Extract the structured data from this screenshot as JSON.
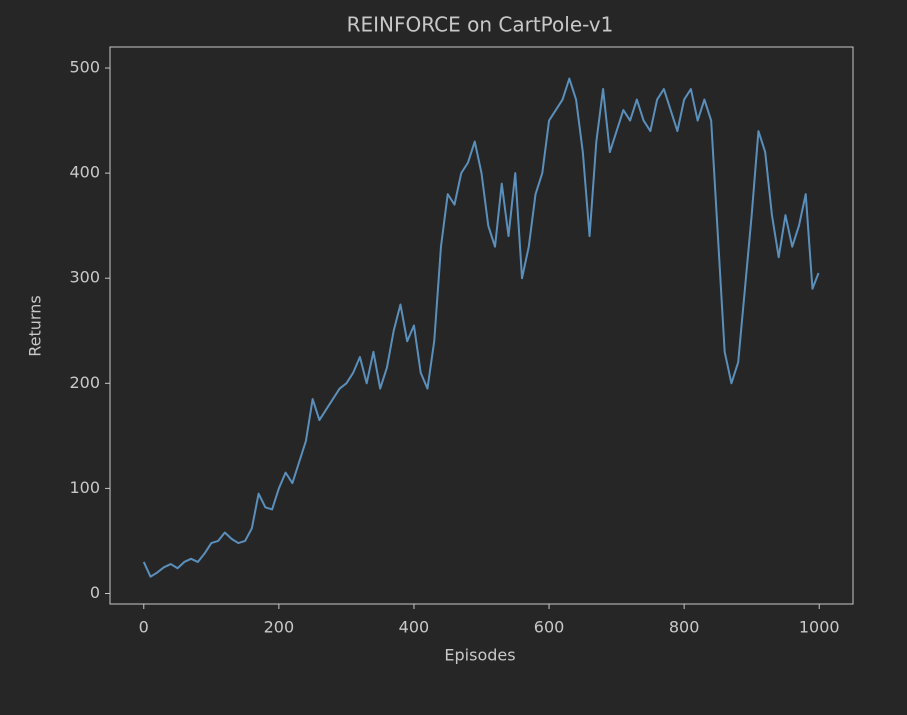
{
  "chart_data": {
    "type": "line",
    "title": "REINFORCE on CartPole-v1",
    "x_label": "Episodes",
    "y_label": "Returns",
    "x": [
      0,
      10,
      20,
      30,
      40,
      50,
      60,
      70,
      80,
      90,
      100,
      110,
      120,
      130,
      140,
      150,
      160,
      170,
      180,
      190,
      200,
      210,
      220,
      230,
      240,
      250,
      260,
      270,
      280,
      290,
      300,
      310,
      320,
      330,
      340,
      350,
      360,
      370,
      380,
      390,
      400,
      410,
      420,
      430,
      440,
      450,
      460,
      470,
      480,
      490,
      500,
      510,
      520,
      530,
      540,
      550,
      560,
      570,
      580,
      590,
      600,
      610,
      620,
      630,
      640,
      650,
      660,
      670,
      680,
      690,
      700,
      710,
      720,
      730,
      740,
      750,
      760,
      770,
      780,
      790,
      800,
      810,
      820,
      830,
      840,
      850,
      860,
      870,
      880,
      890,
      900,
      910,
      920,
      930,
      940,
      950,
      960,
      970,
      980,
      990,
      999
    ],
    "series": [
      {
        "name": "Returns",
        "color": "#5b8fbb",
        "values": [
          30,
          16,
          20,
          25,
          28,
          24,
          30,
          33,
          30,
          38,
          48,
          50,
          58,
          52,
          48,
          50,
          62,
          95,
          82,
          80,
          100,
          115,
          105,
          125,
          145,
          185,
          165,
          175,
          185,
          195,
          200,
          210,
          225,
          200,
          230,
          195,
          215,
          250,
          275,
          240,
          255,
          210,
          195,
          240,
          330,
          380,
          370,
          400,
          410,
          430,
          400,
          350,
          330,
          390,
          340,
          400,
          300,
          330,
          380,
          400,
          450,
          460,
          470,
          490,
          470,
          420,
          340,
          430,
          480,
          420,
          440,
          460,
          450,
          470,
          450,
          440,
          470,
          480,
          460,
          440,
          470,
          480,
          450,
          470,
          450,
          340,
          230,
          200,
          220,
          290,
          360,
          440,
          420,
          360,
          320,
          360,
          330,
          350,
          380,
          290,
          305
        ]
      }
    ],
    "xlim": [
      -50,
      1050
    ],
    "ylim": [
      -10,
      520
    ],
    "xticks": [
      0,
      200,
      400,
      600,
      800,
      1000
    ],
    "yticks": [
      0,
      100,
      200,
      300,
      400,
      500
    ],
    "grid": false
  }
}
